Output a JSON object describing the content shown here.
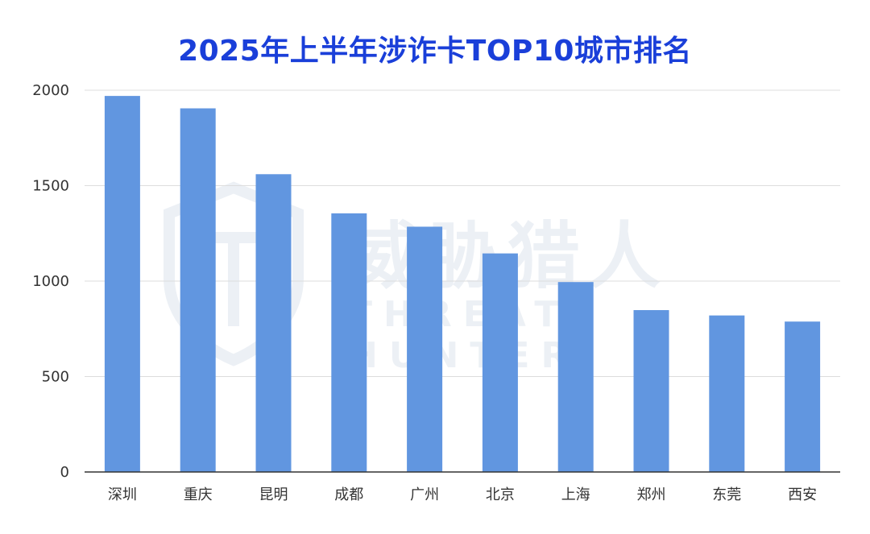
{
  "chart_data": {
    "type": "bar",
    "title": "2025年上半年涉诈卡TOP10城市排名",
    "xlabel": "",
    "ylabel": "",
    "categories": [
      "深圳",
      "重庆",
      "昆明",
      "成都",
      "广州",
      "北京",
      "上海",
      "郑州",
      "东莞",
      "西安"
    ],
    "values": [
      1970,
      1905,
      1560,
      1355,
      1285,
      1145,
      995,
      848,
      820,
      788
    ],
    "ylim": [
      0,
      2000
    ],
    "yticks": [
      0,
      500,
      1000,
      1500,
      2000
    ],
    "grid": true,
    "legend": "none",
    "bar_color": "#6196e0",
    "grid_color": "#dddddd",
    "axis_color": "#333333",
    "title_color": "#1a3fd9"
  },
  "watermark": {
    "text_cn": "威胁猎人",
    "text_en": "THREAT HUNTER",
    "icon": "shield-icon"
  }
}
